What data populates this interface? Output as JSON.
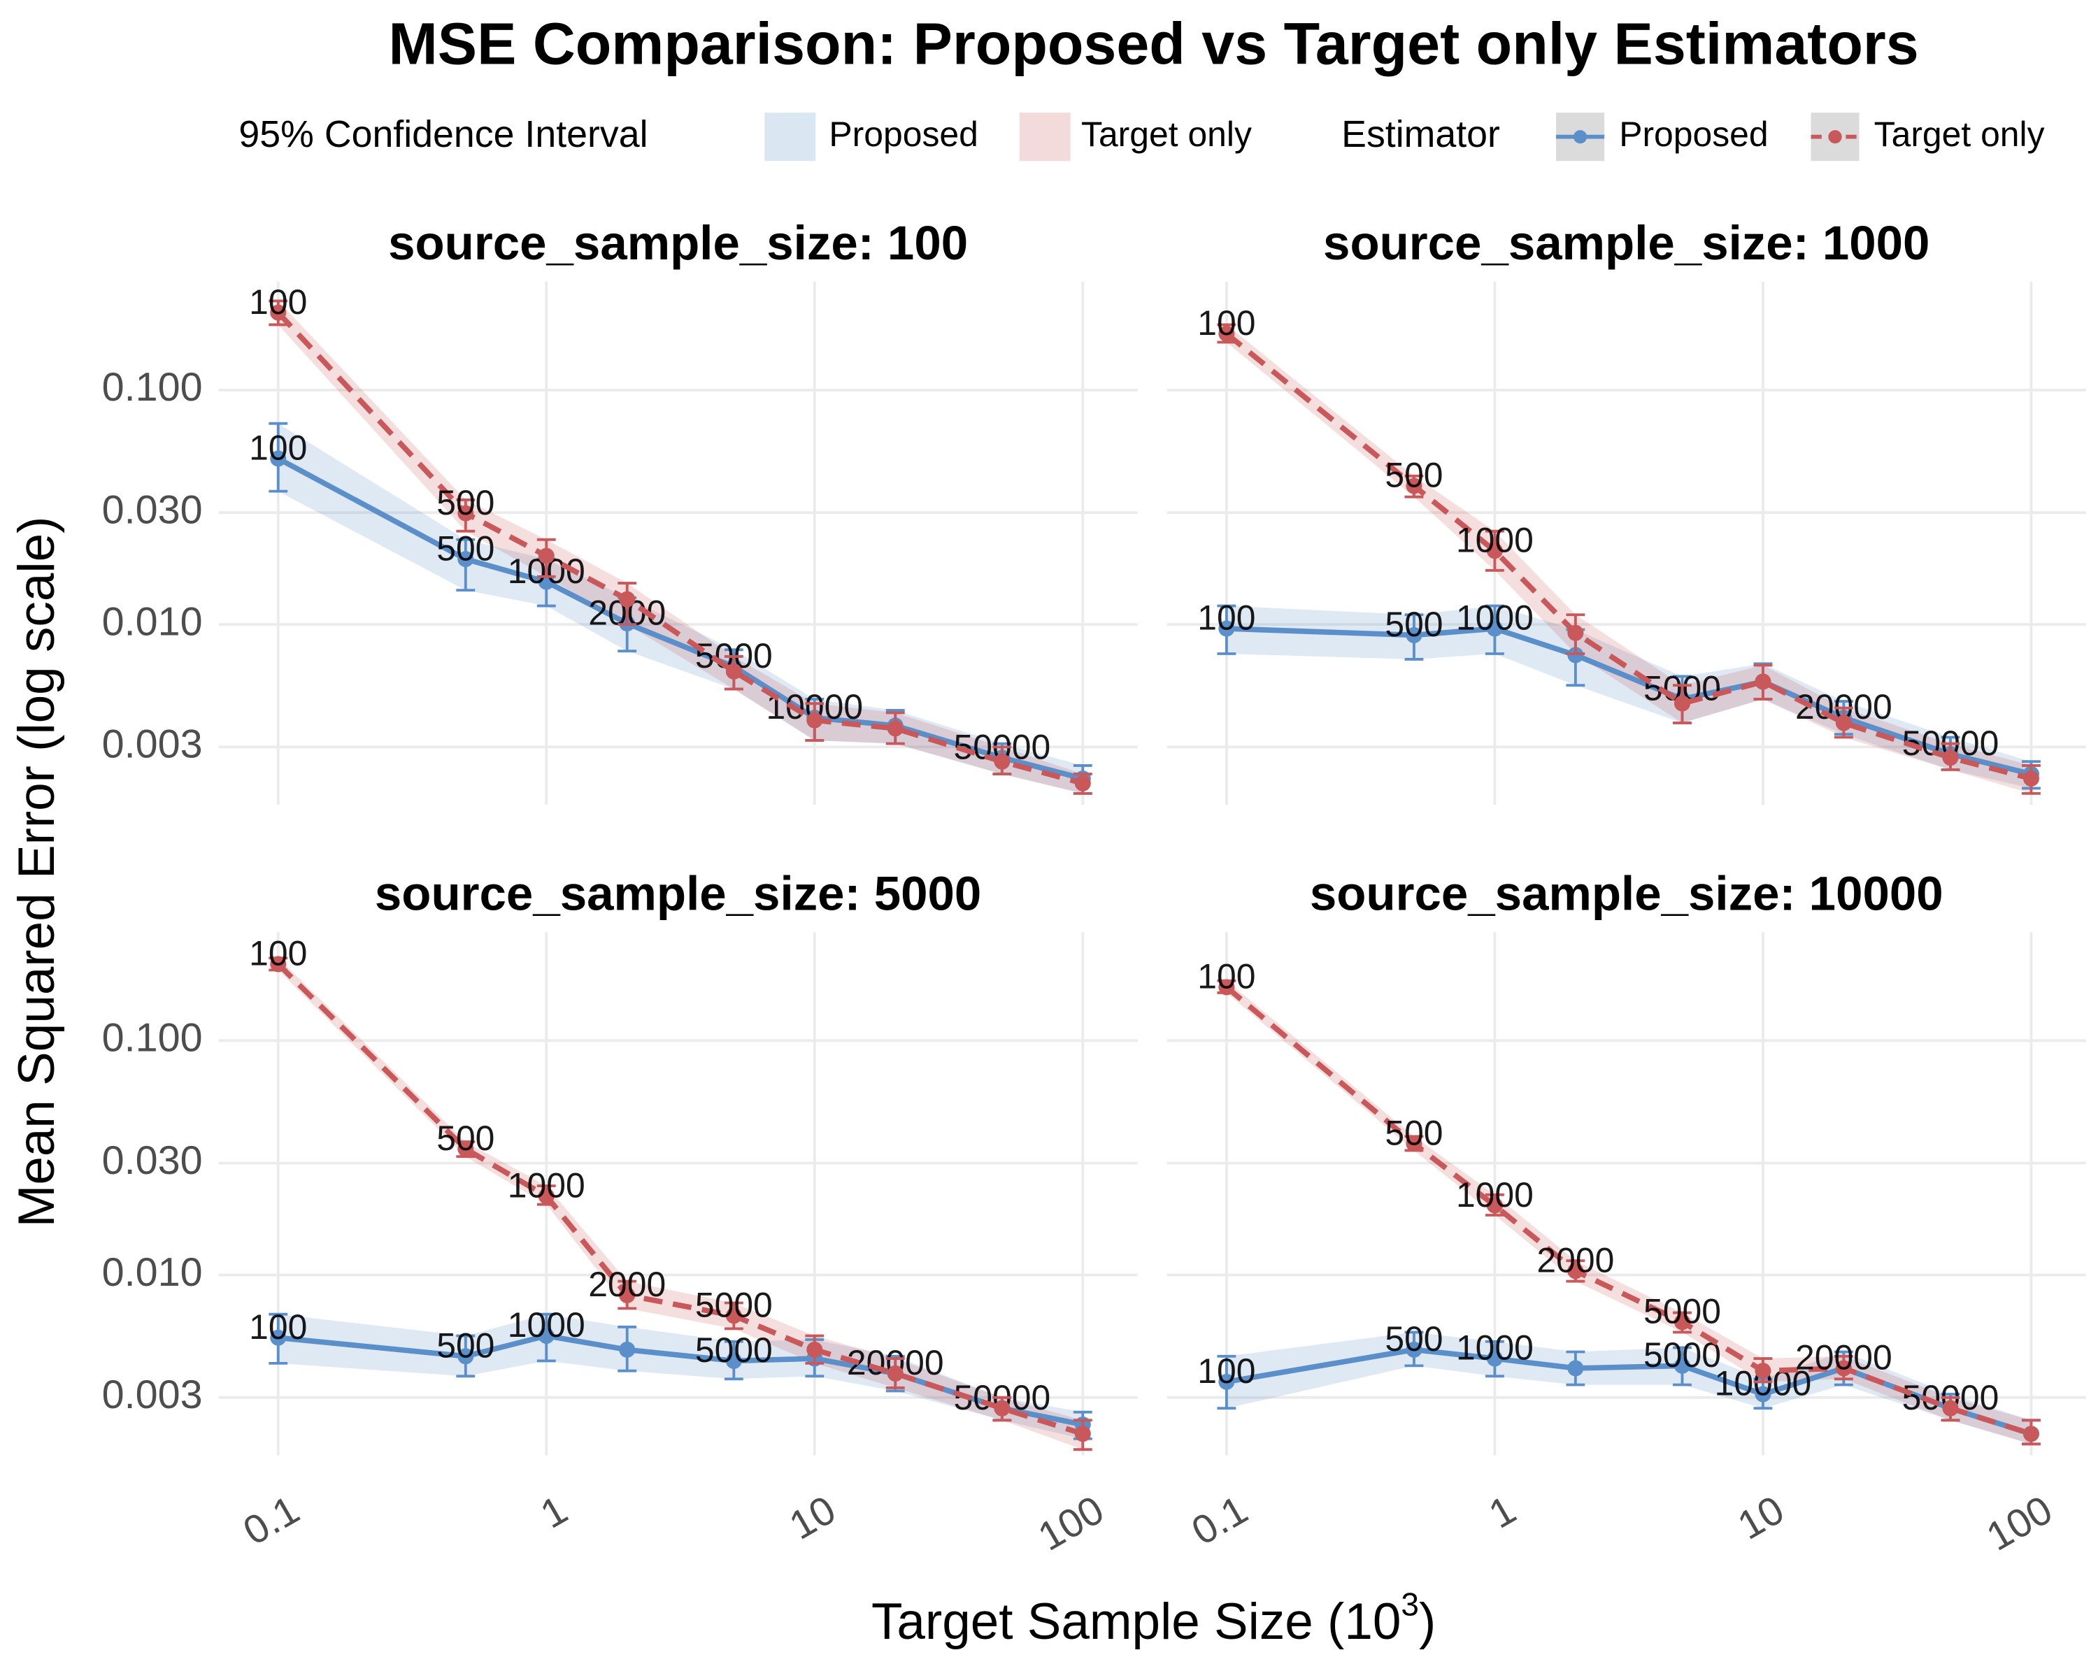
{
  "title": "MSE Comparison: Proposed vs Target only Estimators",
  "legend": {
    "band_title": "95% Confidence Interval",
    "line_title": "Estimator"
  },
  "y_label": "Mean Squared Error (log scale)",
  "x_label": {
    "text": "Target Sample Size (10",
    "sup": "3",
    "end": ")"
  },
  "chart_data": [
    {
      "type": "line",
      "title": "source_sample_size: 100",
      "log_x": true,
      "log_y": true,
      "grid": true,
      "x": [
        0.1,
        0.5,
        1,
        2,
        5,
        10,
        20,
        50,
        100
      ],
      "xlim": [
        0.06,
        160
      ],
      "xticks": [
        0.1,
        1,
        10,
        100
      ],
      "ylim": [
        0.0017,
        0.29
      ],
      "yticks": [
        0.003,
        {
          "value": 0.01,
          "label": "0.010"
        },
        {
          "value": 0.03,
          "label": "0.030"
        },
        {
          "value": 0.1,
          "label": "0.100"
        }
      ],
      "series": [
        {
          "name": "Proposed",
          "color": "#5b8fc9",
          "line_style": "solid",
          "values": [
            0.051,
            0.019,
            0.0152,
            0.0101,
            0.0066,
            0.004,
            0.0037,
            0.0027,
            0.0022
          ],
          "lower": [
            0.037,
            0.014,
            0.012,
            0.0077,
            0.0053,
            0.0032,
            0.0031,
            0.0023,
            0.0019
          ],
          "upper": [
            0.072,
            0.023,
            0.019,
            0.013,
            0.0078,
            0.0048,
            0.0043,
            0.0031,
            0.0025
          ],
          "point_labels": [
            "100",
            "500",
            "1000",
            "2000",
            "5000",
            "10000",
            null,
            "50000",
            null
          ]
        },
        {
          "name": "Target only",
          "color": "#c8585a",
          "line_style": "dashed",
          "values": [
            0.214,
            0.0298,
            0.0196,
            0.0128,
            0.0063,
            0.0039,
            0.0036,
            0.0026,
            0.0021
          ],
          "lower": [
            0.19,
            0.025,
            0.016,
            0.01,
            0.0053,
            0.0032,
            0.0031,
            0.0023,
            0.0019
          ],
          "upper": [
            0.24,
            0.034,
            0.023,
            0.015,
            0.0073,
            0.0046,
            0.0042,
            0.003,
            0.0023
          ],
          "point_labels": [
            "100",
            "500",
            null,
            null,
            null,
            null,
            null,
            null,
            null
          ]
        }
      ]
    },
    {
      "type": "line",
      "title": "source_sample_size: 1000",
      "log_x": true,
      "log_y": true,
      "grid": true,
      "x": [
        0.1,
        0.5,
        1,
        2,
        5,
        10,
        20,
        50,
        100
      ],
      "xlim": [
        0.06,
        160
      ],
      "xticks": [
        0.1,
        1,
        10,
        100
      ],
      "ylim": [
        0.0017,
        0.29
      ],
      "yticks": [
        0.003,
        {
          "value": 0.01,
          "label": "0.010"
        },
        {
          "value": 0.03,
          "label": "0.030"
        },
        {
          "value": 0.1,
          "label": "0.100"
        }
      ],
      "series": [
        {
          "name": "Proposed",
          "color": "#5b8fc9",
          "line_style": "solid",
          "values": [
            0.0096,
            0.009,
            0.0096,
            0.0074,
            0.0048,
            0.0057,
            0.004,
            0.0028,
            0.0023
          ],
          "lower": [
            0.0075,
            0.0071,
            0.0075,
            0.0055,
            0.0038,
            0.0048,
            0.0034,
            0.0024,
            0.002
          ],
          "upper": [
            0.012,
            0.011,
            0.012,
            0.0095,
            0.006,
            0.0068,
            0.0047,
            0.0033,
            0.0026
          ],
          "point_labels": [
            "100",
            "500",
            "1000",
            null,
            "5000",
            null,
            "20000",
            "50000",
            null
          ]
        },
        {
          "name": "Target only",
          "color": "#c8585a",
          "line_style": "dashed",
          "values": [
            0.174,
            0.039,
            0.0206,
            0.0092,
            0.0046,
            0.0057,
            0.0038,
            0.0027,
            0.0022
          ],
          "lower": [
            0.16,
            0.035,
            0.017,
            0.0075,
            0.0038,
            0.0048,
            0.0033,
            0.0024,
            0.0019
          ],
          "upper": [
            0.19,
            0.043,
            0.025,
            0.011,
            0.0055,
            0.0067,
            0.0044,
            0.0031,
            0.0025
          ],
          "point_labels": [
            "100",
            "500",
            "1000",
            null,
            null,
            null,
            null,
            null,
            null
          ]
        }
      ]
    },
    {
      "type": "line",
      "title": "source_sample_size: 5000",
      "log_x": true,
      "log_y": true,
      "grid": true,
      "x": [
        0.1,
        0.5,
        1,
        2,
        5,
        10,
        20,
        50,
        100
      ],
      "xlim": [
        0.06,
        160
      ],
      "xticks": [
        0.1,
        1,
        10,
        100
      ],
      "ylim": [
        0.0017,
        0.29
      ],
      "yticks": [
        0.003,
        {
          "value": 0.01,
          "label": "0.010"
        },
        {
          "value": 0.03,
          "label": "0.030"
        },
        {
          "value": 0.1,
          "label": "0.100"
        }
      ],
      "series": [
        {
          "name": "Proposed",
          "color": "#5b8fc9",
          "line_style": "solid",
          "values": [
            0.0054,
            0.0045,
            0.0055,
            0.0048,
            0.0043,
            0.0044,
            0.0038,
            0.0027,
            0.0023
          ],
          "lower": [
            0.0042,
            0.0037,
            0.0043,
            0.0039,
            0.0036,
            0.0037,
            0.0032,
            0.0024,
            0.002
          ],
          "upper": [
            0.0068,
            0.0055,
            0.0068,
            0.006,
            0.0052,
            0.0053,
            0.0045,
            0.003,
            0.0026
          ],
          "point_labels": [
            "100",
            "500",
            "1000",
            null,
            "5000",
            null,
            "20000",
            "50000",
            null
          ]
        },
        {
          "name": "Target only",
          "color": "#c8585a",
          "line_style": "dashed",
          "values": [
            0.212,
            0.0345,
            0.0217,
            0.0082,
            0.0067,
            0.0048,
            0.0038,
            0.0027,
            0.0021
          ],
          "lower": [
            0.2,
            0.032,
            0.02,
            0.0072,
            0.0059,
            0.0042,
            0.0033,
            0.0024,
            0.0018
          ],
          "upper": [
            0.225,
            0.037,
            0.024,
            0.0094,
            0.0076,
            0.0055,
            0.0044,
            0.003,
            0.0024
          ],
          "point_labels": [
            "100",
            "500",
            "1000",
            "2000",
            "5000",
            null,
            null,
            null,
            null
          ]
        }
      ]
    },
    {
      "type": "line",
      "title": "source_sample_size: 10000",
      "log_x": true,
      "log_y": true,
      "grid": true,
      "x": [
        0.1,
        0.5,
        1,
        2,
        5,
        10,
        20,
        50,
        100
      ],
      "xlim": [
        0.06,
        160
      ],
      "xticks": [
        0.1,
        1,
        10,
        100
      ],
      "ylim": [
        0.0017,
        0.29
      ],
      "yticks": [
        0.003,
        {
          "value": 0.01,
          "label": "0.010"
        },
        {
          "value": 0.03,
          "label": "0.030"
        },
        {
          "value": 0.1,
          "label": "0.100"
        }
      ],
      "series": [
        {
          "name": "Proposed",
          "color": "#5b8fc9",
          "line_style": "solid",
          "values": [
            0.0035,
            0.0048,
            0.0044,
            0.004,
            0.0041,
            0.0031,
            0.004,
            0.0027,
            0.0021
          ],
          "lower": [
            0.0027,
            0.0041,
            0.0037,
            0.0034,
            0.0034,
            0.0027,
            0.0034,
            0.0024,
            0.0019
          ],
          "upper": [
            0.0045,
            0.0057,
            0.0052,
            0.0047,
            0.0049,
            0.0036,
            0.0047,
            0.0031,
            0.0024
          ],
          "point_labels": [
            "100",
            "500",
            "1000",
            null,
            "5000",
            "10000",
            null,
            "50000",
            null
          ]
        },
        {
          "name": "Target only",
          "color": "#c8585a",
          "line_style": "dashed",
          "values": [
            0.169,
            0.0363,
            0.0198,
            0.0104,
            0.0063,
            0.0039,
            0.004,
            0.0027,
            0.0021
          ],
          "lower": [
            0.16,
            0.034,
            0.018,
            0.0094,
            0.0057,
            0.0035,
            0.0036,
            0.0024,
            0.0019
          ],
          "upper": [
            0.18,
            0.039,
            0.022,
            0.0115,
            0.0069,
            0.0044,
            0.0045,
            0.003,
            0.0024
          ],
          "point_labels": [
            "100",
            "500",
            "1000",
            "2000",
            "5000",
            null,
            "20000",
            null,
            null
          ]
        }
      ]
    }
  ]
}
